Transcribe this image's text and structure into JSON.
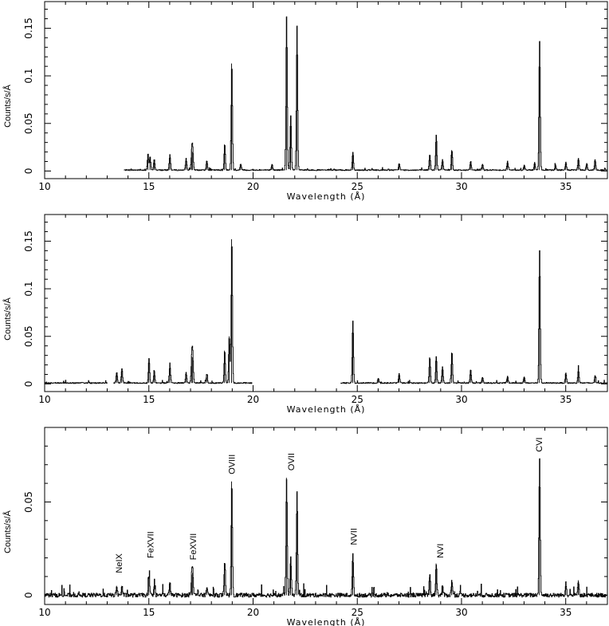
{
  "chart_data": [
    {
      "type": "line",
      "panel": "top",
      "xlabel": "Wavelength (Å)",
      "ylabel": "Counts/s/Å",
      "xlim": [
        10,
        37
      ],
      "ylim": [
        -0.008,
        0.178
      ],
      "xticks": [
        10,
        15,
        20,
        25,
        30,
        35
      ],
      "yticks": [
        0,
        0.05,
        0.1,
        0.15
      ],
      "ytick_labels": [
        "0",
        "0.05",
        "0.1",
        "0.15"
      ],
      "coverage": [
        [
          13.8,
          37
        ]
      ],
      "baseline": 0.001,
      "lines": [
        {
          "x": 14.95,
          "y": 0.018
        },
        {
          "x": 15.05,
          "y": 0.015
        },
        {
          "x": 15.25,
          "y": 0.012
        },
        {
          "x": 16.0,
          "y": 0.017
        },
        {
          "x": 16.78,
          "y": 0.013
        },
        {
          "x": 17.05,
          "y": 0.022
        },
        {
          "x": 17.1,
          "y": 0.02
        },
        {
          "x": 17.77,
          "y": 0.011
        },
        {
          "x": 18.63,
          "y": 0.028
        },
        {
          "x": 18.97,
          "y": 0.113
        },
        {
          "x": 19.4,
          "y": 0.007
        },
        {
          "x": 20.9,
          "y": 0.007
        },
        {
          "x": 21.6,
          "y": 0.162
        },
        {
          "x": 21.8,
          "y": 0.058
        },
        {
          "x": 22.1,
          "y": 0.152
        },
        {
          "x": 24.78,
          "y": 0.02
        },
        {
          "x": 27.0,
          "y": 0.008
        },
        {
          "x": 28.47,
          "y": 0.017
        },
        {
          "x": 28.78,
          "y": 0.038
        },
        {
          "x": 29.08,
          "y": 0.012
        },
        {
          "x": 29.53,
          "y": 0.022
        },
        {
          "x": 30.43,
          "y": 0.01
        },
        {
          "x": 31.0,
          "y": 0.007
        },
        {
          "x": 32.2,
          "y": 0.01
        },
        {
          "x": 33.0,
          "y": 0.006
        },
        {
          "x": 33.5,
          "y": 0.009
        },
        {
          "x": 33.74,
          "y": 0.136
        },
        {
          "x": 34.5,
          "y": 0.006
        },
        {
          "x": 35.0,
          "y": 0.009
        },
        {
          "x": 35.6,
          "y": 0.013
        },
        {
          "x": 36.0,
          "y": 0.008
        },
        {
          "x": 36.4,
          "y": 0.012
        }
      ]
    },
    {
      "type": "line",
      "panel": "middle",
      "xlabel": "Wavelength (Å)",
      "ylabel": "Counts/s/Å",
      "xlim": [
        10,
        37
      ],
      "ylim": [
        -0.008,
        0.178
      ],
      "xticks": [
        10,
        15,
        20,
        25,
        30,
        35
      ],
      "yticks": [
        0,
        0.05,
        0.1,
        0.15
      ],
      "ytick_labels": [
        "0",
        "0.05",
        "0.1",
        "0.15"
      ],
      "coverage": [
        [
          10,
          13.0
        ],
        [
          13.3,
          19.95
        ],
        [
          24.2,
          37
        ]
      ],
      "baseline": 0.001,
      "lines": [
        {
          "x": 12.1,
          "y": 0.002
        },
        {
          "x": 13.45,
          "y": 0.012
        },
        {
          "x": 13.7,
          "y": 0.016
        },
        {
          "x": 15.0,
          "y": 0.027
        },
        {
          "x": 15.25,
          "y": 0.014
        },
        {
          "x": 16.0,
          "y": 0.02
        },
        {
          "x": 16.78,
          "y": 0.012
        },
        {
          "x": 17.05,
          "y": 0.029
        },
        {
          "x": 17.1,
          "y": 0.028
        },
        {
          "x": 17.77,
          "y": 0.01
        },
        {
          "x": 18.63,
          "y": 0.035
        },
        {
          "x": 18.97,
          "y": 0.152
        },
        {
          "x": 18.85,
          "y": 0.05
        },
        {
          "x": 24.78,
          "y": 0.066
        },
        {
          "x": 26.0,
          "y": 0.006
        },
        {
          "x": 27.0,
          "y": 0.011
        },
        {
          "x": 28.47,
          "y": 0.028
        },
        {
          "x": 28.78,
          "y": 0.029
        },
        {
          "x": 29.08,
          "y": 0.018
        },
        {
          "x": 29.53,
          "y": 0.033
        },
        {
          "x": 30.43,
          "y": 0.015
        },
        {
          "x": 31.0,
          "y": 0.007
        },
        {
          "x": 32.2,
          "y": 0.008
        },
        {
          "x": 33.0,
          "y": 0.007
        },
        {
          "x": 33.74,
          "y": 0.14
        },
        {
          "x": 35.0,
          "y": 0.011
        },
        {
          "x": 35.6,
          "y": 0.016
        },
        {
          "x": 36.4,
          "y": 0.009
        }
      ]
    },
    {
      "type": "line",
      "panel": "bottom",
      "xlabel": "Wavelength (Å)",
      "ylabel": "Counts/s/Å",
      "xlim": [
        10,
        37
      ],
      "ylim": [
        -0.005,
        0.09
      ],
      "xticks": [
        10,
        15,
        20,
        25,
        30,
        35
      ],
      "yticks": [
        0,
        0.05
      ],
      "ytick_labels": [
        "0",
        "0.05"
      ],
      "coverage": [
        [
          10,
          37
        ]
      ],
      "baseline": 0.0,
      "lines": [
        {
          "x": 13.45,
          "y": 0.005
        },
        {
          "x": 13.7,
          "y": 0.005
        },
        {
          "x": 15.0,
          "y": 0.01
        },
        {
          "x": 15.25,
          "y": 0.005
        },
        {
          "x": 16.0,
          "y": 0.007
        },
        {
          "x": 17.05,
          "y": 0.011
        },
        {
          "x": 17.1,
          "y": 0.012
        },
        {
          "x": 17.77,
          "y": 0.004
        },
        {
          "x": 18.63,
          "y": 0.017
        },
        {
          "x": 18.97,
          "y": 0.061
        },
        {
          "x": 21.6,
          "y": 0.063
        },
        {
          "x": 21.8,
          "y": 0.02
        },
        {
          "x": 22.1,
          "y": 0.055
        },
        {
          "x": 24.78,
          "y": 0.022
        },
        {
          "x": 28.47,
          "y": 0.011
        },
        {
          "x": 28.78,
          "y": 0.017
        },
        {
          "x": 29.08,
          "y": 0.005
        },
        {
          "x": 29.53,
          "y": 0.008
        },
        {
          "x": 33.74,
          "y": 0.073
        },
        {
          "x": 35.0,
          "y": 0.007
        },
        {
          "x": 35.6,
          "y": 0.008
        }
      ],
      "annotations": [
        {
          "text": "NeIX",
          "x": 13.6,
          "y": 0.011
        },
        {
          "text": "FeXVII",
          "x": 15.1,
          "y": 0.019
        },
        {
          "text": "FeXVII",
          "x": 17.15,
          "y": 0.018
        },
        {
          "text": "OVIII",
          "x": 19.0,
          "y": 0.064
        },
        {
          "text": "OVII",
          "x": 21.85,
          "y": 0.066
        },
        {
          "text": "NVII",
          "x": 24.85,
          "y": 0.026
        },
        {
          "text": "NVI",
          "x": 29.0,
          "y": 0.019
        },
        {
          "text": "CVI",
          "x": 33.75,
          "y": 0.076
        }
      ]
    }
  ]
}
